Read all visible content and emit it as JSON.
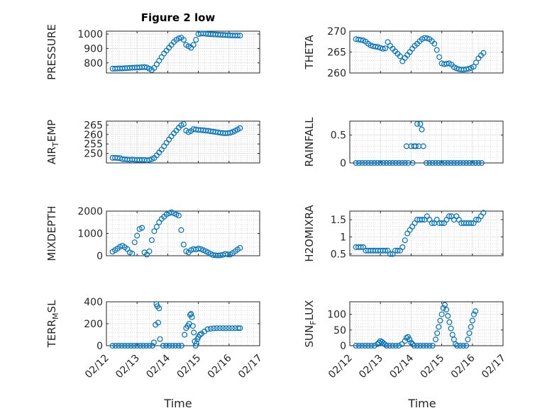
{
  "figure": {
    "title": "Figure 2 low",
    "x_label_left": "Time",
    "x_label_right": "Time"
  },
  "chart_data": [
    {
      "id": "pressure",
      "type": "scatter",
      "title": "Figure 2 low",
      "ylabel": "PRESSURE",
      "ylabel_main": "PRESSURE",
      "ylabel_sub": "",
      "ylabel_tail": "",
      "xlim": [
        0,
        5
      ],
      "ylim": [
        730,
        1020
      ],
      "yticks": [
        800,
        900,
        1000
      ],
      "ytick_labels": [
        "800",
        "900",
        "1000"
      ],
      "xticks": [
        0,
        1,
        2,
        3,
        4,
        5
      ],
      "xtick_labels": [
        "02/12",
        "02/13",
        "02/14",
        "02/15",
        "02/16",
        "02/17"
      ],
      "show_xtick_labels": false,
      "grid": true,
      "color": "#0072BD",
      "x": [
        0.2,
        0.28,
        0.36,
        0.44,
        0.52,
        0.6,
        0.68,
        0.76,
        0.84,
        0.92,
        1.0,
        1.08,
        1.16,
        1.24,
        1.32,
        1.4,
        1.48,
        1.56,
        1.64,
        1.72,
        1.8,
        1.88,
        1.96,
        2.04,
        2.12,
        2.2,
        2.28,
        2.36,
        2.44,
        2.52,
        2.6,
        2.68,
        2.76,
        2.84,
        2.92,
        3.0,
        3.08,
        3.16,
        3.24,
        3.32,
        3.4,
        3.48,
        3.56,
        3.64,
        3.72,
        3.8,
        3.88,
        3.96,
        4.04,
        4.12,
        4.2,
        4.28,
        4.36
      ],
      "y": [
        760,
        760,
        761,
        762,
        762,
        763,
        764,
        765,
        766,
        767,
        768,
        768,
        770,
        771,
        768,
        760,
        750,
        765,
        790,
        815,
        840,
        865,
        885,
        905,
        925,
        945,
        960,
        970,
        975,
        960,
        925,
        915,
        905,
        925,
        960,
        1000,
        1003,
        1004,
        1002,
        1000,
        999,
        998,
        997,
        996,
        995,
        994,
        993,
        992,
        991,
        990,
        990,
        990,
        989
      ]
    },
    {
      "id": "theta",
      "type": "scatter",
      "ylabel": "THETA",
      "ylabel_main": "THETA",
      "ylabel_sub": "",
      "ylabel_tail": "",
      "xlim": [
        0,
        5
      ],
      "ylim": [
        260,
        270
      ],
      "yticks": [
        260,
        265,
        270
      ],
      "ytick_labels": [
        "260",
        "265",
        "270"
      ],
      "xticks": [
        0,
        1,
        2,
        3,
        4,
        5
      ],
      "xtick_labels": [
        "02/12",
        "02/13",
        "02/14",
        "02/15",
        "02/16",
        "02/17"
      ],
      "show_xtick_labels": false,
      "grid": true,
      "color": "#0072BD",
      "x": [
        0.2,
        0.28,
        0.36,
        0.44,
        0.52,
        0.6,
        0.68,
        0.76,
        0.84,
        0.92,
        1.0,
        1.08,
        1.16,
        1.24,
        1.32,
        1.4,
        1.48,
        1.56,
        1.64,
        1.72,
        1.8,
        1.88,
        1.96,
        2.04,
        2.12,
        2.2,
        2.28,
        2.36,
        2.44,
        2.52,
        2.6,
        2.68,
        2.76,
        2.84,
        2.92,
        3.0,
        3.08,
        3.16,
        3.24,
        3.32,
        3.4,
        3.48,
        3.56,
        3.64,
        3.72,
        3.8,
        3.88,
        3.96,
        4.04,
        4.12,
        4.2,
        4.28,
        4.36
      ],
      "y": [
        268.1,
        268.0,
        267.9,
        267.8,
        267.5,
        267.0,
        266.6,
        266.4,
        266.3,
        266.2,
        266.0,
        265.8,
        265.9,
        267.4,
        266.5,
        265.8,
        265.2,
        264.6,
        264.0,
        262.8,
        263.6,
        264.3,
        265.0,
        265.8,
        266.5,
        267.0,
        267.6,
        268.1,
        268.4,
        268.3,
        268.1,
        267.6,
        267.0,
        265.5,
        263.8,
        262.3,
        262.1,
        262.2,
        262.3,
        262.0,
        261.4,
        261.1,
        260.9,
        260.8,
        260.8,
        260.9,
        261.0,
        261.2,
        261.5,
        262.5,
        263.5,
        264.2,
        264.8
      ]
    },
    {
      "id": "air-temp",
      "type": "scatter",
      "ylabel": "AIR_TEMP",
      "ylabel_main": "AIR",
      "ylabel_sub": "T",
      "ylabel_tail": "EMP",
      "xlim": [
        0,
        5
      ],
      "ylim": [
        245,
        267
      ],
      "yticks": [
        250,
        255,
        260,
        265
      ],
      "ytick_labels": [
        "250",
        "255",
        "260",
        "265"
      ],
      "xticks": [
        0,
        1,
        2,
        3,
        4,
        5
      ],
      "xtick_labels": [
        "02/12",
        "02/13",
        "02/14",
        "02/15",
        "02/16",
        "02/17"
      ],
      "show_xtick_labels": false,
      "grid": true,
      "color": "#0072BD",
      "x": [
        0.2,
        0.28,
        0.36,
        0.44,
        0.52,
        0.6,
        0.68,
        0.76,
        0.84,
        0.92,
        1.0,
        1.08,
        1.16,
        1.24,
        1.32,
        1.4,
        1.48,
        1.56,
        1.64,
        1.72,
        1.8,
        1.88,
        1.96,
        2.04,
        2.12,
        2.2,
        2.28,
        2.36,
        2.44,
        2.52,
        2.6,
        2.68,
        2.76,
        2.84,
        2.92,
        3.0,
        3.08,
        3.16,
        3.24,
        3.32,
        3.4,
        3.48,
        3.56,
        3.64,
        3.72,
        3.8,
        3.88,
        3.96,
        4.04,
        4.12,
        4.2,
        4.28,
        4.36
      ],
      "y": [
        247.7,
        247.7,
        247.6,
        247.5,
        247.0,
        246.9,
        246.8,
        246.7,
        246.8,
        246.7,
        246.6,
        246.6,
        246.6,
        246.6,
        246.4,
        246.6,
        247.0,
        247.6,
        249.0,
        250.5,
        252.0,
        253.8,
        255.6,
        257.3,
        259.0,
        260.6,
        262.0,
        263.5,
        264.8,
        265.5,
        262.0,
        261.2,
        261.8,
        262.8,
        262.6,
        262.4,
        262.3,
        262.2,
        262.0,
        261.9,
        261.7,
        261.5,
        261.3,
        261.1,
        260.9,
        260.7,
        260.6,
        260.7,
        260.9,
        261.3,
        261.9,
        262.6,
        263.3
      ]
    },
    {
      "id": "rainfall",
      "type": "scatter",
      "ylabel": "RAINFALL",
      "ylabel_main": "RAINFALL",
      "ylabel_sub": "",
      "ylabel_tail": "",
      "xlim": [
        0,
        5
      ],
      "ylim": [
        0,
        0.75
      ],
      "yticks": [
        0,
        0.5
      ],
      "ytick_labels": [
        "0",
        "0.5"
      ],
      "xticks": [
        0,
        1,
        2,
        3,
        4,
        5
      ],
      "xtick_labels": [
        "02/12",
        "02/13",
        "02/14",
        "02/15",
        "02/16",
        "02/17"
      ],
      "show_xtick_labels": false,
      "grid": true,
      "color": "#0072BD",
      "x": [
        0.2,
        0.3,
        0.4,
        0.5,
        0.6,
        0.7,
        0.8,
        0.9,
        1.0,
        1.1,
        1.2,
        1.3,
        1.4,
        1.5,
        1.6,
        1.7,
        1.8,
        1.85,
        1.9,
        2.0,
        2.05,
        2.1,
        2.15,
        2.2,
        2.25,
        2.3,
        2.35,
        2.4,
        2.5,
        2.6,
        2.7,
        2.8,
        2.9,
        3.0,
        3.1,
        3.2,
        3.3,
        3.4,
        3.5,
        3.6,
        3.7,
        3.8,
        3.9,
        4.0,
        4.1,
        4.2,
        4.3
      ],
      "y": [
        0,
        0,
        0,
        0,
        0,
        0,
        0,
        0,
        0,
        0,
        0,
        0,
        0,
        0,
        0,
        0,
        0,
        0.3,
        0,
        0.3,
        0,
        0.3,
        0.3,
        0.7,
        0.3,
        0.7,
        0.6,
        0.3,
        0,
        0,
        0,
        0,
        0,
        0,
        0,
        0,
        0,
        0,
        0,
        0,
        0,
        0,
        0,
        0,
        0,
        0,
        0
      ]
    },
    {
      "id": "mixdepth",
      "type": "scatter",
      "ylabel": "MIXDEPTH",
      "ylabel_main": "MIXDEPTH",
      "ylabel_sub": "",
      "ylabel_tail": "",
      "xlim": [
        0,
        5
      ],
      "ylim": [
        0,
        2000
      ],
      "yticks": [
        0,
        1000,
        2000
      ],
      "ytick_labels": [
        "0",
        "1000",
        "2000"
      ],
      "xticks": [
        0,
        1,
        2,
        3,
        4,
        5
      ],
      "xtick_labels": [
        "02/12",
        "02/13",
        "02/14",
        "02/15",
        "02/16",
        "02/17"
      ],
      "show_xtick_labels": false,
      "grid": true,
      "color": "#0072BD",
      "x": [
        0.2,
        0.28,
        0.36,
        0.44,
        0.52,
        0.6,
        0.68,
        0.76,
        0.84,
        0.92,
        1.0,
        1.08,
        1.16,
        1.24,
        1.32,
        1.4,
        1.48,
        1.56,
        1.64,
        1.72,
        1.8,
        1.88,
        1.96,
        2.04,
        2.12,
        2.2,
        2.28,
        2.36,
        2.44,
        2.52,
        2.6,
        2.68,
        2.76,
        2.84,
        2.92,
        3.0,
        3.08,
        3.16,
        3.24,
        3.32,
        3.4,
        3.48,
        3.56,
        3.64,
        3.72,
        3.8,
        3.88,
        3.96,
        4.04,
        4.12,
        4.2,
        4.28,
        4.36
      ],
      "y": [
        180,
        250,
        320,
        400,
        450,
        380,
        300,
        150,
        100,
        600,
        900,
        1200,
        1250,
        150,
        50,
        200,
        700,
        1100,
        1300,
        1500,
        1650,
        1750,
        1850,
        1900,
        1950,
        1900,
        1850,
        1800,
        1150,
        500,
        200,
        150,
        250,
        300,
        280,
        320,
        300,
        250,
        200,
        150,
        80,
        30,
        20,
        10,
        20,
        40,
        80,
        60,
        50,
        120,
        200,
        280,
        350
      ]
    },
    {
      "id": "h2omixra",
      "type": "scatter",
      "ylabel": "H2OMIXRA",
      "ylabel_main": "H2OMIXRA",
      "ylabel_sub": "",
      "ylabel_tail": "",
      "xlim": [
        0,
        5
      ],
      "ylim": [
        0.45,
        1.75
      ],
      "yticks": [
        0.5,
        1,
        1.5
      ],
      "ytick_labels": [
        "0.5",
        "1",
        "1.5"
      ],
      "xticks": [
        0,
        1,
        2,
        3,
        4,
        5
      ],
      "xtick_labels": [
        "02/12",
        "02/13",
        "02/14",
        "02/15",
        "02/16",
        "02/17"
      ],
      "show_xtick_labels": false,
      "grid": true,
      "color": "#0072BD",
      "x": [
        0.2,
        0.28,
        0.36,
        0.44,
        0.52,
        0.6,
        0.68,
        0.76,
        0.84,
        0.92,
        1.0,
        1.08,
        1.16,
        1.24,
        1.32,
        1.4,
        1.48,
        1.56,
        1.64,
        1.72,
        1.8,
        1.88,
        1.96,
        2.04,
        2.12,
        2.2,
        2.28,
        2.36,
        2.44,
        2.52,
        2.6,
        2.68,
        2.76,
        2.84,
        2.92,
        3.0,
        3.08,
        3.16,
        3.24,
        3.32,
        3.4,
        3.48,
        3.56,
        3.64,
        3.72,
        3.8,
        3.88,
        3.96,
        4.04,
        4.12,
        4.2,
        4.28,
        4.36
      ],
      "y": [
        0.7,
        0.7,
        0.7,
        0.7,
        0.6,
        0.6,
        0.6,
        0.6,
        0.6,
        0.6,
        0.6,
        0.6,
        0.6,
        0.6,
        0.5,
        0.5,
        0.6,
        0.6,
        0.6,
        0.7,
        0.9,
        1.1,
        1.2,
        1.3,
        1.4,
        1.5,
        1.5,
        1.5,
        1.5,
        1.6,
        1.5,
        1.4,
        1.4,
        1.5,
        1.4,
        1.4,
        1.4,
        1.5,
        1.6,
        1.6,
        1.5,
        1.6,
        1.5,
        1.4,
        1.4,
        1.4,
        1.4,
        1.4,
        1.4,
        1.5,
        1.5,
        1.6,
        1.7
      ]
    },
    {
      "id": "terr-msl",
      "type": "scatter",
      "ylabel": "TERR_MSL",
      "ylabel_main": "TERR",
      "ylabel_sub": "M",
      "ylabel_tail": "SL",
      "xlim": [
        0,
        5
      ],
      "ylim": [
        0,
        400
      ],
      "yticks": [
        0,
        200,
        400
      ],
      "ytick_labels": [
        "0",
        "200",
        "400"
      ],
      "xticks": [
        0,
        1,
        2,
        3,
        4,
        5
      ],
      "xtick_labels": [
        "02/12",
        "02/13",
        "02/14",
        "02/15",
        "02/16",
        "02/17"
      ],
      "show_xtick_labels": true,
      "grid": true,
      "color": "#0072BD",
      "x": [
        0.2,
        0.3,
        0.4,
        0.5,
        0.6,
        0.7,
        0.8,
        0.9,
        1.0,
        1.1,
        1.2,
        1.3,
        1.4,
        1.5,
        1.55,
        1.6,
        1.63,
        1.66,
        1.69,
        1.72,
        1.75,
        1.85,
        1.95,
        2.05,
        2.15,
        2.25,
        2.35,
        2.45,
        2.55,
        2.6,
        2.65,
        2.7,
        2.73,
        2.76,
        2.79,
        2.82,
        2.85,
        2.88,
        2.91,
        2.94,
        2.97,
        3.0,
        3.05,
        3.1,
        3.2,
        3.3,
        3.4,
        3.5,
        3.6,
        3.7,
        3.8,
        3.9,
        4.0,
        4.1,
        4.2,
        4.3,
        4.36
      ],
      "y": [
        0,
        0,
        0,
        0,
        0,
        0,
        0,
        0,
        0,
        0,
        0,
        0,
        0,
        0,
        30,
        190,
        380,
        360,
        210,
        340,
        60,
        0,
        0,
        0,
        0,
        0,
        0,
        0,
        100,
        160,
        180,
        200,
        280,
        290,
        260,
        180,
        120,
        40,
        0,
        20,
        60,
        80,
        100,
        110,
        130,
        150,
        155,
        158,
        160,
        160,
        160,
        160,
        160,
        160,
        160,
        160,
        160
      ]
    },
    {
      "id": "sun-flux",
      "type": "scatter",
      "ylabel": "SUN_FLUX",
      "ylabel_main": "SUN",
      "ylabel_sub": "F",
      "ylabel_tail": "LUX",
      "xlim": [
        0,
        5
      ],
      "ylim": [
        0,
        140
      ],
      "yticks": [
        0,
        50,
        100
      ],
      "ytick_labels": [
        "0",
        "50",
        "100"
      ],
      "xticks": [
        0,
        1,
        2,
        3,
        4,
        5
      ],
      "xtick_labels": [
        "02/12",
        "02/13",
        "02/14",
        "02/15",
        "02/16",
        "02/17"
      ],
      "show_xtick_labels": true,
      "grid": true,
      "color": "#0072BD",
      "x": [
        0.2,
        0.3,
        0.4,
        0.5,
        0.6,
        0.7,
        0.8,
        0.9,
        0.95,
        1.0,
        1.05,
        1.1,
        1.15,
        1.2,
        1.3,
        1.4,
        1.5,
        1.6,
        1.7,
        1.8,
        1.85,
        1.9,
        1.95,
        2.0,
        2.05,
        2.1,
        2.2,
        2.3,
        2.4,
        2.5,
        2.6,
        2.7,
        2.8,
        2.85,
        2.9,
        2.95,
        3.0,
        3.05,
        3.1,
        3.15,
        3.2,
        3.25,
        3.3,
        3.35,
        3.4,
        3.45,
        3.5,
        3.6,
        3.7,
        3.8,
        3.85,
        3.9,
        3.95,
        4.0,
        4.05,
        4.1
      ],
      "y": [
        0,
        0,
        0,
        0,
        0,
        0,
        0,
        5,
        10,
        15,
        12,
        8,
        4,
        0,
        0,
        0,
        0,
        0,
        5,
        15,
        25,
        28,
        20,
        10,
        5,
        0,
        0,
        0,
        0,
        0,
        0,
        0,
        20,
        40,
        60,
        80,
        100,
        120,
        130,
        115,
        95,
        75,
        55,
        35,
        20,
        5,
        0,
        0,
        0,
        0,
        20,
        40,
        60,
        80,
        100,
        110
      ]
    }
  ]
}
